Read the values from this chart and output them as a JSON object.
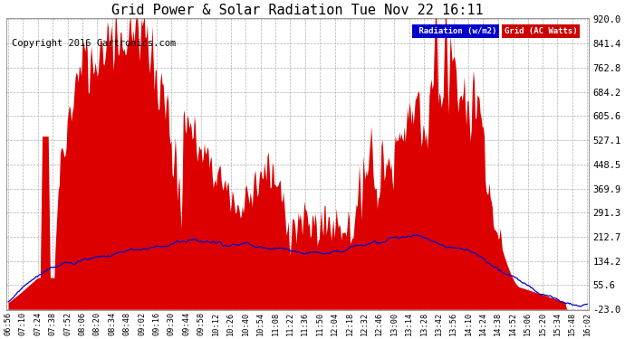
{
  "title": "Grid Power & Solar Radiation Tue Nov 22 16:11",
  "copyright": "Copyright 2016 Cartronics.com",
  "ylim": [
    -23.0,
    920.0
  ],
  "yticks": [
    920.0,
    841.4,
    762.8,
    684.2,
    605.6,
    527.1,
    448.5,
    369.9,
    291.3,
    212.7,
    134.2,
    55.6,
    -23.0
  ],
  "legend_labels": [
    "Radiation (w/m2)",
    "Grid (AC Watts)"
  ],
  "fill_color": "#dd0000",
  "line_color": "#0000cc",
  "background_color": "#ffffff",
  "grid_color": "#b0b0b0",
  "title_fontsize": 11,
  "tick_fontsize": 7.5,
  "copyright_fontsize": 7.5,
  "n_points": 580,
  "xtick_labels": [
    "06:56",
    "07:10",
    "07:24",
    "07:38",
    "07:52",
    "08:06",
    "08:20",
    "08:34",
    "08:48",
    "09:02",
    "09:16",
    "09:30",
    "09:44",
    "09:58",
    "10:12",
    "10:26",
    "10:40",
    "10:54",
    "11:08",
    "11:22",
    "11:36",
    "11:50",
    "12:04",
    "12:18",
    "12:32",
    "12:46",
    "13:00",
    "13:14",
    "13:28",
    "13:42",
    "13:56",
    "14:10",
    "14:24",
    "14:38",
    "14:52",
    "15:06",
    "15:20",
    "15:34",
    "15:48",
    "16:02"
  ]
}
